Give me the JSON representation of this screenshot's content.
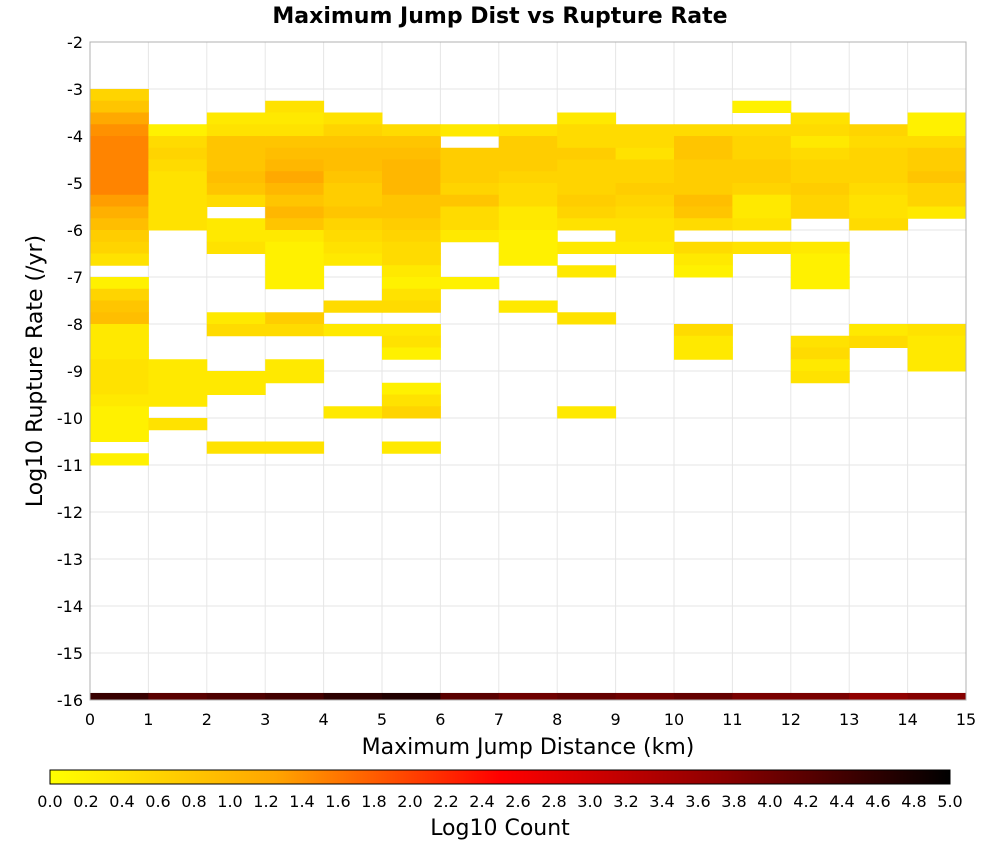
{
  "chart_data": {
    "type": "heatmap",
    "title": "Maximum Jump Dist vs Rupture Rate",
    "xlabel": "Maximum Jump Distance (km)",
    "ylabel": "Log10 Rupture Rate (/yr)",
    "xlim": [
      0,
      15
    ],
    "ylim": [
      -16,
      -2
    ],
    "x_bin_width": 1,
    "y_bin_width": 0.25,
    "x_ticks": [
      "0",
      "1",
      "2",
      "3",
      "4",
      "5",
      "6",
      "7",
      "8",
      "9",
      "10",
      "11",
      "12",
      "13",
      "14",
      "15"
    ],
    "y_ticks": [
      "-2",
      "-3",
      "-4",
      "-5",
      "-6",
      "-7",
      "-8",
      "-9",
      "-10",
      "-11",
      "-12",
      "-13",
      "-14",
      "-15",
      "-16"
    ],
    "grid": true,
    "colorbar": {
      "label": "Log10 Count",
      "min": 0.0,
      "max": 5.0,
      "ticks": [
        "0.0",
        "0.2",
        "0.4",
        "0.6",
        "0.8",
        "1.0",
        "1.2",
        "1.4",
        "1.6",
        "1.8",
        "2.0",
        "2.2",
        "2.4",
        "2.6",
        "2.8",
        "3.0",
        "3.2",
        "3.4",
        "3.6",
        "3.8",
        "4.0",
        "4.2",
        "4.4",
        "4.6",
        "4.8",
        "5.0"
      ],
      "colors": [
        "#ffff00",
        "#ffa500",
        "#ff0000",
        "#8b0000",
        "#000000"
      ]
    },
    "columns": [
      {
        "x": 0,
        "cells": [
          [
            -3.0,
            0.6
          ],
          [
            -3.25,
            0.8
          ],
          [
            -3.5,
            1.2
          ],
          [
            -3.75,
            1.4
          ],
          [
            -4.0,
            1.5
          ],
          [
            -4.25,
            1.5
          ],
          [
            -4.5,
            1.5
          ],
          [
            -4.75,
            1.5
          ],
          [
            -5.0,
            1.5
          ],
          [
            -5.25,
            1.3
          ],
          [
            -5.5,
            1.1
          ],
          [
            -5.75,
            0.9
          ],
          [
            -6.0,
            0.7
          ],
          [
            -6.25,
            0.6
          ],
          [
            -6.5,
            0.4
          ],
          [
            -7.0,
            0.2
          ],
          [
            -7.25,
            0.6
          ],
          [
            -7.5,
            0.8
          ],
          [
            -7.75,
            0.9
          ],
          [
            -8.0,
            0.3
          ],
          [
            -8.25,
            0.3
          ],
          [
            -8.5,
            0.3
          ],
          [
            -8.75,
            0.4
          ],
          [
            -9.0,
            0.4
          ],
          [
            -9.25,
            0.4
          ],
          [
            -9.5,
            0.3
          ],
          [
            -9.75,
            0.2
          ],
          [
            -10.0,
            0.2
          ],
          [
            -10.25,
            0.2
          ],
          [
            -10.75,
            0.2
          ]
        ]
      },
      {
        "x": 1,
        "cells": [
          [
            -3.75,
            0.2
          ],
          [
            -4.0,
            0.5
          ],
          [
            -4.25,
            0.6
          ],
          [
            -4.5,
            0.5
          ],
          [
            -4.75,
            0.4
          ],
          [
            -5.0,
            0.4
          ],
          [
            -5.25,
            0.4
          ],
          [
            -5.5,
            0.4
          ],
          [
            -5.75,
            0.4
          ],
          [
            -8.75,
            0.3
          ],
          [
            -9.0,
            0.3
          ],
          [
            -9.25,
            0.3
          ],
          [
            -9.5,
            0.3
          ],
          [
            -10.0,
            0.4
          ]
        ]
      },
      {
        "x": 2,
        "cells": [
          [
            -3.5,
            0.3
          ],
          [
            -3.75,
            0.4
          ],
          [
            -4.0,
            0.8
          ],
          [
            -4.25,
            0.8
          ],
          [
            -4.5,
            0.8
          ],
          [
            -4.75,
            0.9
          ],
          [
            -5.0,
            0.8
          ],
          [
            -5.25,
            0.5
          ],
          [
            -5.75,
            0.3
          ],
          [
            -6.0,
            0.3
          ],
          [
            -6.25,
            0.4
          ],
          [
            -7.75,
            0.3
          ],
          [
            -8.0,
            0.5
          ],
          [
            -9.0,
            0.3
          ],
          [
            -9.25,
            0.3
          ],
          [
            -10.5,
            0.4
          ]
        ]
      },
      {
        "x": 3,
        "cells": [
          [
            -3.25,
            0.4
          ],
          [
            -3.5,
            0.3
          ],
          [
            -3.75,
            0.4
          ],
          [
            -4.0,
            0.8
          ],
          [
            -4.25,
            0.9
          ],
          [
            -4.5,
            1.0
          ],
          [
            -4.75,
            1.2
          ],
          [
            -5.0,
            1.0
          ],
          [
            -5.25,
            0.8
          ],
          [
            -5.5,
            1.0
          ],
          [
            -5.75,
            0.8
          ],
          [
            -6.0,
            0.3
          ],
          [
            -6.25,
            0.2
          ],
          [
            -6.5,
            0.2
          ],
          [
            -6.75,
            0.2
          ],
          [
            -7.0,
            0.2
          ],
          [
            -7.75,
            0.7
          ],
          [
            -8.0,
            0.5
          ],
          [
            -8.75,
            0.3
          ],
          [
            -9.0,
            0.3
          ],
          [
            -10.5,
            0.4
          ]
        ]
      },
      {
        "x": 4,
        "cells": [
          [
            -3.5,
            0.4
          ],
          [
            -3.75,
            0.6
          ],
          [
            -4.0,
            0.8
          ],
          [
            -4.25,
            0.9
          ],
          [
            -4.5,
            0.9
          ],
          [
            -4.75,
            0.8
          ],
          [
            -5.0,
            0.7
          ],
          [
            -5.25,
            0.7
          ],
          [
            -5.5,
            0.8
          ],
          [
            -5.75,
            0.6
          ],
          [
            -6.0,
            0.5
          ],
          [
            -6.25,
            0.4
          ],
          [
            -6.5,
            0.3
          ],
          [
            -7.5,
            0.5
          ],
          [
            -8.0,
            0.3
          ],
          [
            -9.75,
            0.3
          ]
        ]
      },
      {
        "x": 5,
        "cells": [
          [
            -3.75,
            0.5
          ],
          [
            -4.0,
            0.8
          ],
          [
            -4.25,
            0.9
          ],
          [
            -4.5,
            1.0
          ],
          [
            -4.75,
            1.0
          ],
          [
            -5.0,
            1.0
          ],
          [
            -5.25,
            0.8
          ],
          [
            -5.5,
            0.8
          ],
          [
            -5.75,
            0.7
          ],
          [
            -6.0,
            0.6
          ],
          [
            -6.25,
            0.5
          ],
          [
            -6.5,
            0.5
          ],
          [
            -6.75,
            0.3
          ],
          [
            -7.0,
            0.2
          ],
          [
            -7.25,
            0.4
          ],
          [
            -7.5,
            0.5
          ],
          [
            -8.0,
            0.3
          ],
          [
            -8.25,
            0.4
          ],
          [
            -8.5,
            0.2
          ],
          [
            -9.25,
            0.2
          ],
          [
            -9.5,
            0.4
          ],
          [
            -9.75,
            0.6
          ],
          [
            -10.5,
            0.3
          ]
        ]
      },
      {
        "x": 6,
        "cells": [
          [
            -3.75,
            0.3
          ],
          [
            -4.25,
            0.7
          ],
          [
            -4.5,
            0.7
          ],
          [
            -4.75,
            0.7
          ],
          [
            -5.0,
            0.6
          ],
          [
            -5.25,
            0.8
          ],
          [
            -5.5,
            0.5
          ],
          [
            -5.75,
            0.5
          ],
          [
            -6.0,
            0.3
          ],
          [
            -7.0,
            0.2
          ]
        ]
      },
      {
        "x": 7,
        "cells": [
          [
            -3.75,
            0.4
          ],
          [
            -4.0,
            0.7
          ],
          [
            -4.25,
            0.7
          ],
          [
            -4.5,
            0.7
          ],
          [
            -4.75,
            0.6
          ],
          [
            -5.0,
            0.5
          ],
          [
            -5.25,
            0.5
          ],
          [
            -5.5,
            0.3
          ],
          [
            -5.75,
            0.3
          ],
          [
            -6.0,
            0.2
          ],
          [
            -6.25,
            0.2
          ],
          [
            -6.5,
            0.2
          ],
          [
            -7.5,
            0.3
          ]
        ]
      },
      {
        "x": 8,
        "cells": [
          [
            -3.5,
            0.3
          ],
          [
            -3.75,
            0.5
          ],
          [
            -4.0,
            0.5
          ],
          [
            -4.25,
            0.7
          ],
          [
            -4.5,
            0.6
          ],
          [
            -4.75,
            0.6
          ],
          [
            -5.0,
            0.6
          ],
          [
            -5.25,
            0.7
          ],
          [
            -5.5,
            0.6
          ],
          [
            -5.75,
            0.4
          ],
          [
            -6.25,
            0.3
          ],
          [
            -6.75,
            0.3
          ],
          [
            -7.75,
            0.4
          ],
          [
            -9.75,
            0.3
          ]
        ]
      },
      {
        "x": 9,
        "cells": [
          [
            -3.75,
            0.5
          ],
          [
            -4.0,
            0.5
          ],
          [
            -4.25,
            0.4
          ],
          [
            -4.5,
            0.6
          ],
          [
            -4.75,
            0.6
          ],
          [
            -5.0,
            0.7
          ],
          [
            -5.25,
            0.6
          ],
          [
            -5.5,
            0.5
          ],
          [
            -5.75,
            0.4
          ],
          [
            -6.0,
            0.4
          ],
          [
            -6.25,
            0.3
          ]
        ]
      },
      {
        "x": 10,
        "cells": [
          [
            -3.75,
            0.5
          ],
          [
            -4.0,
            0.8
          ],
          [
            -4.25,
            0.8
          ],
          [
            -4.5,
            0.7
          ],
          [
            -4.75,
            0.7
          ],
          [
            -5.0,
            0.7
          ],
          [
            -5.25,
            0.9
          ],
          [
            -5.5,
            0.8
          ],
          [
            -5.75,
            0.5
          ],
          [
            -6.25,
            0.5
          ],
          [
            -6.5,
            0.3
          ],
          [
            -6.75,
            0.2
          ],
          [
            -8.0,
            0.5
          ],
          [
            -8.25,
            0.3
          ],
          [
            -8.5,
            0.3
          ]
        ]
      },
      {
        "x": 11,
        "cells": [
          [
            -3.25,
            0.2
          ],
          [
            -3.75,
            0.5
          ],
          [
            -4.0,
            0.6
          ],
          [
            -4.25,
            0.6
          ],
          [
            -4.5,
            0.7
          ],
          [
            -4.75,
            0.7
          ],
          [
            -5.0,
            0.6
          ],
          [
            -5.25,
            0.3
          ],
          [
            -5.5,
            0.3
          ],
          [
            -5.75,
            0.4
          ],
          [
            -6.25,
            0.4
          ]
        ]
      },
      {
        "x": 12,
        "cells": [
          [
            -3.5,
            0.4
          ],
          [
            -3.75,
            0.5
          ],
          [
            -4.0,
            0.3
          ],
          [
            -4.25,
            0.5
          ],
          [
            -4.5,
            0.6
          ],
          [
            -4.75,
            0.6
          ],
          [
            -5.0,
            0.7
          ],
          [
            -5.25,
            0.6
          ],
          [
            -5.5,
            0.6
          ],
          [
            -6.25,
            0.3
          ],
          [
            -6.5,
            0.2
          ],
          [
            -6.75,
            0.2
          ],
          [
            -7.0,
            0.2
          ],
          [
            -8.25,
            0.4
          ],
          [
            -8.5,
            0.5
          ],
          [
            -8.75,
            0.3
          ],
          [
            -9.0,
            0.4
          ]
        ]
      },
      {
        "x": 13,
        "cells": [
          [
            -3.75,
            0.6
          ],
          [
            -4.0,
            0.5
          ],
          [
            -4.25,
            0.6
          ],
          [
            -4.5,
            0.6
          ],
          [
            -4.75,
            0.6
          ],
          [
            -5.0,
            0.5
          ],
          [
            -5.25,
            0.4
          ],
          [
            -5.5,
            0.4
          ],
          [
            -5.75,
            0.5
          ],
          [
            -8.0,
            0.3
          ],
          [
            -8.25,
            0.5
          ]
        ]
      },
      {
        "x": 14,
        "cells": [
          [
            -3.5,
            0.2
          ],
          [
            -3.75,
            0.2
          ],
          [
            -4.0,
            0.5
          ],
          [
            -4.25,
            0.7
          ],
          [
            -4.5,
            0.7
          ],
          [
            -4.75,
            0.8
          ],
          [
            -5.0,
            0.6
          ],
          [
            -5.25,
            0.6
          ],
          [
            -5.5,
            0.3
          ],
          [
            -8.0,
            0.4
          ],
          [
            -8.25,
            0.3
          ],
          [
            -8.5,
            0.3
          ],
          [
            -8.75,
            0.3
          ]
        ]
      }
    ],
    "baseline_row": {
      "y": -16.0,
      "values": [
        4.5,
        4.2,
        4.3,
        4.4,
        4.6,
        4.7,
        4.2,
        4.0,
        4.1,
        4.0,
        4.1,
        3.9,
        3.9,
        3.7,
        3.8
      ]
    }
  }
}
